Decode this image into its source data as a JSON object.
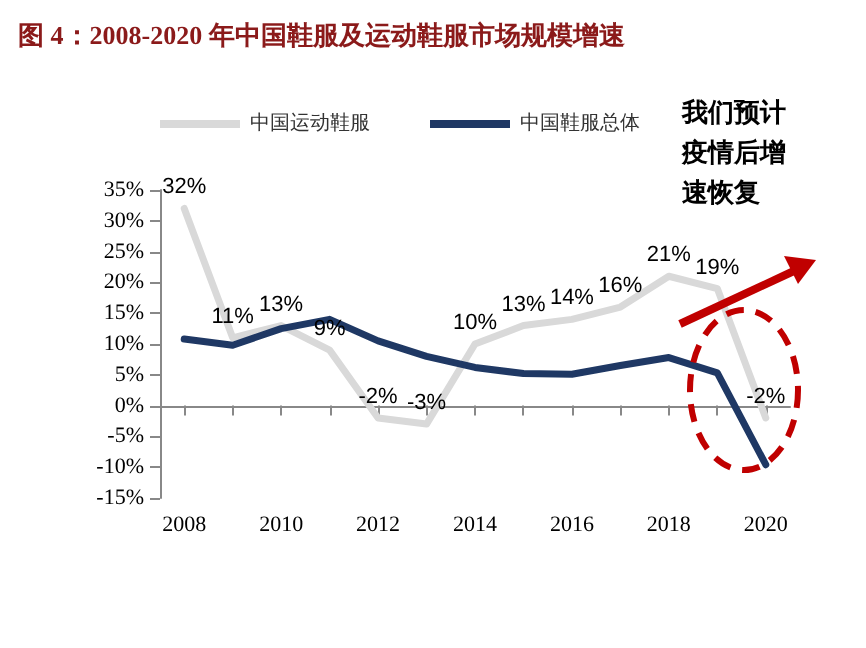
{
  "chart_data": {
    "type": "line",
    "title": "图 4：2008-2020 年中国鞋服及运动鞋服市场规模增速",
    "categories": [
      "2008",
      null,
      "2010",
      null,
      "2012",
      null,
      "2014",
      null,
      "2016",
      null,
      "2018",
      null,
      "2020"
    ],
    "series": [
      {
        "name": "中国运动鞋服",
        "color": "#d9d9d9",
        "values": [
          32,
          11,
          13,
          9,
          -2,
          -3,
          10,
          13,
          14,
          16,
          21,
          19,
          -2
        ],
        "value_labels": [
          "32%",
          "11%",
          "13%",
          "9%",
          "-2%",
          "-3%",
          "10%",
          "13%",
          "14%",
          "16%",
          "21%",
          "19%",
          "-2%"
        ]
      },
      {
        "name": "中国鞋服总体",
        "color": "#1f3864",
        "values": [
          10.8,
          9.8,
          12.5,
          14,
          10.5,
          8,
          6.2,
          5.2,
          5.1,
          6.5,
          7.8,
          5.3,
          -9.6
        ]
      }
    ],
    "ylim": [
      -15,
      35
    ],
    "yticks": [
      {
        "value": -15,
        "label": "-15%"
      },
      {
        "value": -10,
        "label": "-10%"
      },
      {
        "value": -5,
        "label": "-5%"
      },
      {
        "value": 0,
        "label": "0%"
      },
      {
        "value": 5,
        "label": "5%"
      },
      {
        "value": 10,
        "label": "10%"
      },
      {
        "value": 15,
        "label": "15%"
      },
      {
        "value": 20,
        "label": "20%"
      },
      {
        "value": 25,
        "label": "25%"
      },
      {
        "value": 30,
        "label": "30%"
      },
      {
        "value": 35,
        "label": "35%"
      }
    ],
    "annotations": [
      "我们预计疫情后增速恢复"
    ],
    "legend": "top",
    "line_style": "solid"
  }
}
